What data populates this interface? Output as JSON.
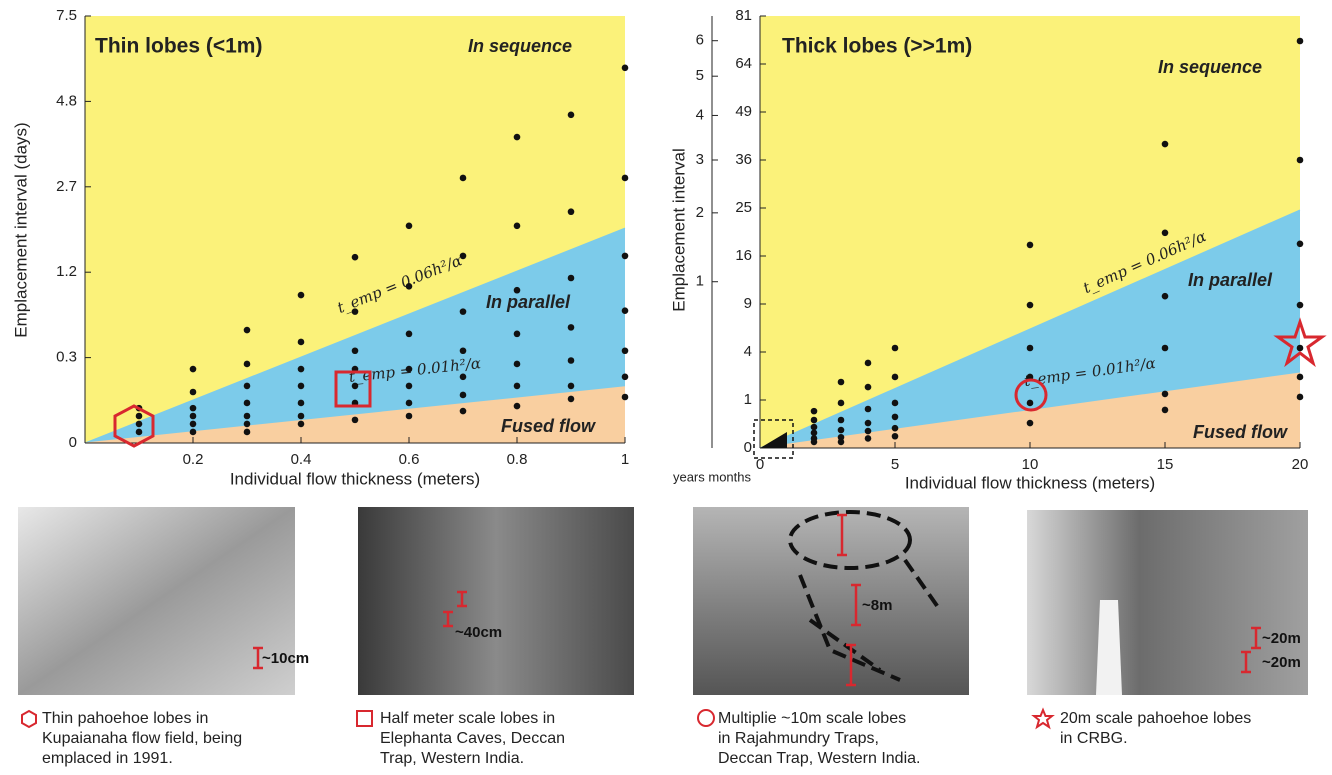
{
  "chart_data": [
    {
      "type": "scatter",
      "title": "Thin lobes (<1m)",
      "xlabel": "Individual flow thickness (meters)",
      "ylabel": "Emplacement interval (days)",
      "xlim": [
        0,
        1
      ],
      "xticks": [
        0.2,
        0.4,
        0.6,
        0.8,
        1
      ],
      "ylim": [
        0,
        7.5
      ],
      "yticks": [
        0,
        0.3,
        1.2,
        2.7,
        4.8,
        7.5
      ],
      "y_scale": "sqrt",
      "point_color": "#111111",
      "region_colors": [
        "#fbf27a",
        "#7ccbea",
        "#f9cfa0"
      ],
      "region_labels": [
        "In sequence",
        "In parallel",
        "Fused flow"
      ],
      "boundaries": [
        {
          "label": "t_emp = 0.06h²/α",
          "x": [
            0,
            1
          ],
          "values": [
            0,
            1.9
          ]
        },
        {
          "label": "t_emp = 0.01h²/α",
          "x": [
            0,
            1
          ],
          "values": [
            0,
            0.13
          ]
        }
      ],
      "x": [
        0.1,
        0.1,
        0.1,
        0.1,
        0.2,
        0.2,
        0.2,
        0.2,
        0.2,
        0.2,
        0.3,
        0.3,
        0.3,
        0.3,
        0.3,
        0.3,
        0.3,
        0.4,
        0.4,
        0.4,
        0.4,
        0.4,
        0.4,
        0.4,
        0.5,
        0.5,
        0.5,
        0.5,
        0.5,
        0.5,
        0.5,
        0.6,
        0.6,
        0.6,
        0.6,
        0.6,
        0.6,
        0.6,
        0.7,
        0.7,
        0.7,
        0.7,
        0.7,
        0.7,
        0.7,
        0.8,
        0.8,
        0.8,
        0.8,
        0.8,
        0.8,
        0.8,
        0.9,
        0.9,
        0.9,
        0.9,
        0.9,
        0.9,
        0.9,
        1,
        1,
        1,
        1,
        1,
        1,
        1
      ],
      "values": [
        0.05,
        0.03,
        0.015,
        0.005,
        0.225,
        0.107,
        0.05,
        0.03,
        0.015,
        0.005,
        0.525,
        0.257,
        0.134,
        0.066,
        0.03,
        0.015,
        0.005,
        0.9,
        0.42,
        0.225,
        0.134,
        0.066,
        0.03,
        0.015,
        1.42,
        0.71,
        0.35,
        0.225,
        0.134,
        0.066,
        0.022,
        1.94,
        1.01,
        0.49,
        0.225,
        0.134,
        0.066,
        0.03,
        2.89,
        1.44,
        0.71,
        0.35,
        0.18,
        0.095,
        0.042,
        3.85,
        1.94,
        0.96,
        0.49,
        0.257,
        0.134,
        0.056,
        4.43,
        2.2,
        1.12,
        0.55,
        0.28,
        0.134,
        0.08,
        5.79,
        2.89,
        1.44,
        0.72,
        0.35,
        0.18,
        0.087
      ]
    },
    {
      "type": "scatter",
      "title": "Thick lobes (>>1m)",
      "xlabel": "Individual flow thickness (meters)",
      "ylabel": "Emplacement interval",
      "xlim": [
        0,
        20
      ],
      "xticks": [
        0,
        5,
        10,
        15,
        20
      ],
      "ylim": [
        0,
        81
      ],
      "yticks": [
        0,
        1,
        4,
        9,
        16,
        25,
        36,
        49,
        64,
        81
      ],
      "y_scale": "sqrt",
      "y2lim": [
        0,
        6.75
      ],
      "y2ticks": [
        1,
        2,
        3,
        4,
        5,
        6
      ],
      "y2label": "years months",
      "point_color": "#111111",
      "region_colors": [
        "#fbf27a",
        "#7ccbea",
        "#f9cfa0"
      ],
      "region_labels": [
        "In sequence",
        "In parallel",
        "Fused flow"
      ],
      "boundaries": [
        {
          "label": "t_emp = 0.06h²/α",
          "x": [
            0,
            20
          ],
          "values": [
            0,
            24.6
          ]
        },
        {
          "label": "t_emp = 0.01h²/α",
          "x": [
            0,
            20
          ],
          "values": [
            0,
            2.44
          ]
        }
      ],
      "x": [
        2,
        2,
        2,
        2,
        2,
        2,
        3,
        3,
        3,
        3,
        3,
        3,
        4,
        4,
        4,
        4,
        4,
        4,
        5,
        5,
        5,
        5,
        5,
        5,
        10,
        10,
        10,
        10,
        10,
        10,
        15,
        15,
        15,
        15,
        15,
        15,
        20,
        20,
        20,
        20,
        20,
        20,
        20
      ],
      "values": [
        0.59,
        0.34,
        0.19,
        0.1,
        0.04,
        0.016,
        1.89,
        0.88,
        0.34,
        0.14,
        0.05,
        0.016,
        3.14,
        1.61,
        0.66,
        0.27,
        0.125,
        0.04,
        4.34,
        2.19,
        0.88,
        0.42,
        0.17,
        0.06,
        17.9,
        8.87,
        4.34,
        2.19,
        0.88,
        0.27,
        40.1,
        20.1,
        10,
        4.34,
        1.27,
        0.63,
        71.9,
        36,
        18.1,
        8.87,
        4.34,
        2.19,
        1.13
      ]
    }
  ],
  "photos": [
    {
      "scale_labels": [
        "~10cm"
      ],
      "caption": [
        "Thin pahoehoe lobes in",
        "Kupaianaha flow field, being",
        "emplaced in 1991."
      ]
    },
    {
      "scale_labels": [
        "~40cm"
      ],
      "caption": [
        "Half meter scale lobes in",
        "Elephanta Caves, Deccan",
        "Trap, Western India."
      ]
    },
    {
      "scale_labels": [
        "~8m"
      ],
      "caption": [
        "Multiplie ~10m scale lobes",
        "in Rajahmundry Traps,",
        "Deccan Trap, Western India."
      ]
    },
    {
      "scale_labels": [
        "~20m",
        "~20m"
      ],
      "caption": [
        "20m scale pahoehoe lobes",
        "in CRBG."
      ]
    }
  ]
}
